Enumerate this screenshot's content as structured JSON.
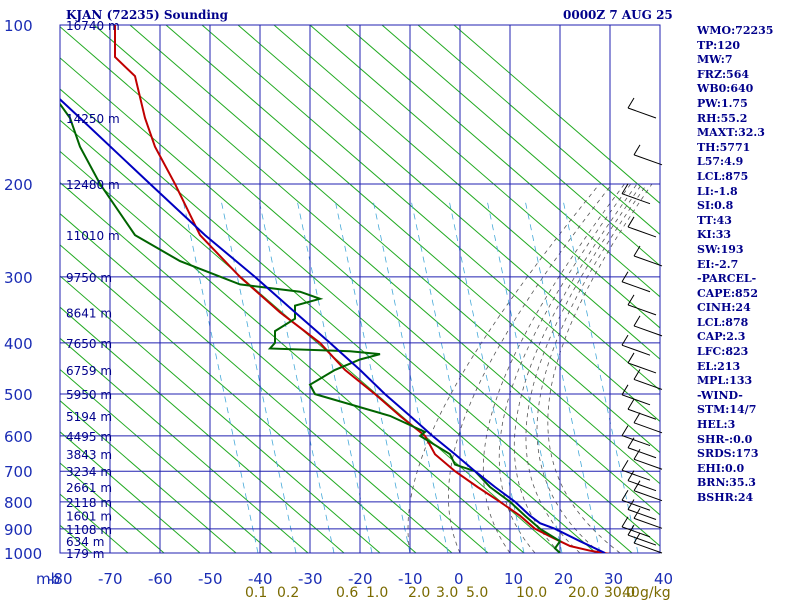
{
  "chart_data": {
    "type": "line",
    "title": "KJAN (72235) Sounding",
    "subtitle": "0000Z  7 AUG 25",
    "pressure_unit": "mb",
    "pressure_ticks": [
      100,
      200,
      300,
      400,
      500,
      600,
      700,
      800,
      900,
      1000
    ],
    "temperature_ticks": [
      -80,
      -70,
      -60,
      -50,
      -40,
      -30,
      -20,
      -10,
      0,
      10,
      20,
      30,
      40
    ],
    "xlim": [
      -80,
      40
    ],
    "ylim": [
      1000,
      100
    ],
    "height_labels": [
      {
        "p": 100,
        "label": "16740 m"
      },
      {
        "p": 150,
        "label": "14250 m"
      },
      {
        "p": 200,
        "label": "12480 m"
      },
      {
        "p": 250,
        "label": "11010 m"
      },
      {
        "p": 300,
        "label": "9750 m"
      },
      {
        "p": 350,
        "label": "8641 m"
      },
      {
        "p": 400,
        "label": "7650 m"
      },
      {
        "p": 450,
        "label": "6759 m"
      },
      {
        "p": 500,
        "label": "5950 m"
      },
      {
        "p": 550,
        "label": "5194 m"
      },
      {
        "p": 600,
        "label": "4495 m"
      },
      {
        "p": 650,
        "label": "3843 m"
      },
      {
        "p": 700,
        "label": "3234 m"
      },
      {
        "p": 750,
        "label": "2661 m"
      },
      {
        "p": 800,
        "label": "2118 m"
      },
      {
        "p": 850,
        "label": "1601 m"
      },
      {
        "p": 900,
        "label": "1108 m"
      },
      {
        "p": 950,
        "label": "634 m"
      },
      {
        "p": 1000,
        "label": "179 m"
      }
    ],
    "mixing_ratio_labels": [
      "0.1",
      "0.2",
      "0.6",
      "1.0",
      "2.0",
      "3.0",
      "5.0",
      "10.0",
      "20.0",
      "30.0",
      "40",
      "g/kg"
    ],
    "mixing_ratio_values": [
      0.1,
      0.2,
      0.6,
      1.0,
      2.0,
      3.0,
      5.0,
      10.0,
      20.0,
      30.0,
      40
    ],
    "series": [
      {
        "role": "temperature",
        "color": "#c00000",
        "points": [
          {
            "p": 1008,
            "t": 31
          },
          {
            "p": 990,
            "t": 26
          },
          {
            "p": 970,
            "t": 22
          },
          {
            "p": 940,
            "t": 19
          },
          {
            "p": 900,
            "t": 15
          },
          {
            "p": 850,
            "t": 12
          },
          {
            "p": 800,
            "t": 8
          },
          {
            "p": 750,
            "t": 3.5
          },
          {
            "p": 700,
            "t": -1
          },
          {
            "p": 650,
            "t": -5
          },
          {
            "p": 600,
            "t": -7
          },
          {
            "p": 550,
            "t": -12
          },
          {
            "p": 500,
            "t": -17
          },
          {
            "p": 450,
            "t": -23
          },
          {
            "p": 400,
            "t": -28
          },
          {
            "p": 350,
            "t": -36
          },
          {
            "p": 300,
            "t": -44
          },
          {
            "p": 250,
            "t": -52
          },
          {
            "p": 200,
            "t": -57
          },
          {
            "p": 170,
            "t": -61
          },
          {
            "p": 150,
            "t": -63
          },
          {
            "p": 125,
            "t": -65
          },
          {
            "p": 115,
            "t": -69
          },
          {
            "p": 100,
            "t": -69
          }
        ]
      },
      {
        "role": "dewpoint",
        "color": "#006400",
        "points": [
          {
            "p": 1000,
            "t": 20
          },
          {
            "p": 980,
            "t": 19
          },
          {
            "p": 950,
            "t": 20
          },
          {
            "p": 900,
            "t": 16
          },
          {
            "p": 850,
            "t": 13
          },
          {
            "p": 800,
            "t": 10
          },
          {
            "p": 750,
            "t": 6
          },
          {
            "p": 700,
            "t": 3
          },
          {
            "p": 680,
            "t": -1
          },
          {
            "p": 650,
            "t": -2
          },
          {
            "p": 600,
            "t": -8
          },
          {
            "p": 590,
            "t": -7
          },
          {
            "p": 550,
            "t": -14
          },
          {
            "p": 500,
            "t": -29
          },
          {
            "p": 480,
            "t": -30
          },
          {
            "p": 450,
            "t": -25
          },
          {
            "p": 430,
            "t": -20
          },
          {
            "p": 420,
            "t": -16
          },
          {
            "p": 415,
            "t": -22
          },
          {
            "p": 410,
            "t": -38
          },
          {
            "p": 400,
            "t": -37
          },
          {
            "p": 380,
            "t": -37
          },
          {
            "p": 360,
            "t": -33
          },
          {
            "p": 340,
            "t": -33
          },
          {
            "p": 330,
            "t": -28
          },
          {
            "p": 320,
            "t": -32
          },
          {
            "p": 310,
            "t": -44
          },
          {
            "p": 280,
            "t": -56
          },
          {
            "p": 250,
            "t": -65
          },
          {
            "p": 200,
            "t": -72
          },
          {
            "p": 170,
            "t": -76
          },
          {
            "p": 150,
            "t": -78
          },
          {
            "p": 125,
            "t": -84
          },
          {
            "p": 115,
            "t": -86
          },
          {
            "p": 100,
            "t": -87
          }
        ]
      },
      {
        "role": "parcel",
        "color": "#0000c0",
        "points": [
          {
            "p": 1000,
            "t": 29
          },
          {
            "p": 950,
            "t": 24
          },
          {
            "p": 900,
            "t": 19
          },
          {
            "p": 878,
            "t": 16
          },
          {
            "p": 850,
            "t": 14
          },
          {
            "p": 800,
            "t": 11
          },
          {
            "p": 750,
            "t": 7
          },
          {
            "p": 700,
            "t": 3
          },
          {
            "p": 650,
            "t": -1
          },
          {
            "p": 600,
            "t": -5.5
          },
          {
            "p": 550,
            "t": -10
          },
          {
            "p": 500,
            "t": -15
          },
          {
            "p": 450,
            "t": -20
          },
          {
            "p": 400,
            "t": -26
          },
          {
            "p": 350,
            "t": -33
          },
          {
            "p": 300,
            "t": -41
          },
          {
            "p": 250,
            "t": -51
          },
          {
            "p": 200,
            "t": -62
          },
          {
            "p": 150,
            "t": -76
          },
          {
            "p": 100,
            "t": -96
          }
        ]
      }
    ],
    "grid": true
  },
  "indices": [
    "WMO:72235",
    "TP:120",
    "MW:7",
    "FRZ:564",
    "WB0:640",
    "PW:1.75",
    "RH:55.2",
    "MAXT:32.3",
    "TH:5771",
    "L57:4.9",
    "LCL:875",
    "LI:-1.8",
    "SI:0.8",
    "TT:43",
    "KI:33",
    "SW:193",
    "EI:-2.7",
    "-PARCEL-",
    "CAPE:852",
    "CINH:24",
    "LCL:878",
    "CAP:2.3",
    "LFC:823",
    "EL:213",
    "MPL:133",
    "-WIND-",
    "STM:14/7",
    "HEL:3",
    "SHR-:0.0",
    "SRDS:173",
    "EHI:0.0",
    "BRN:35.3",
    "BSHR:24"
  ],
  "colors": {
    "isobar": "#2020b0",
    "isotherm": "#2020b0",
    "dry_adiabat": "#22aa22",
    "moist_adiabat": "#555555",
    "mixing_ratio": "#44a8d8",
    "wind_barb": "#000000"
  }
}
